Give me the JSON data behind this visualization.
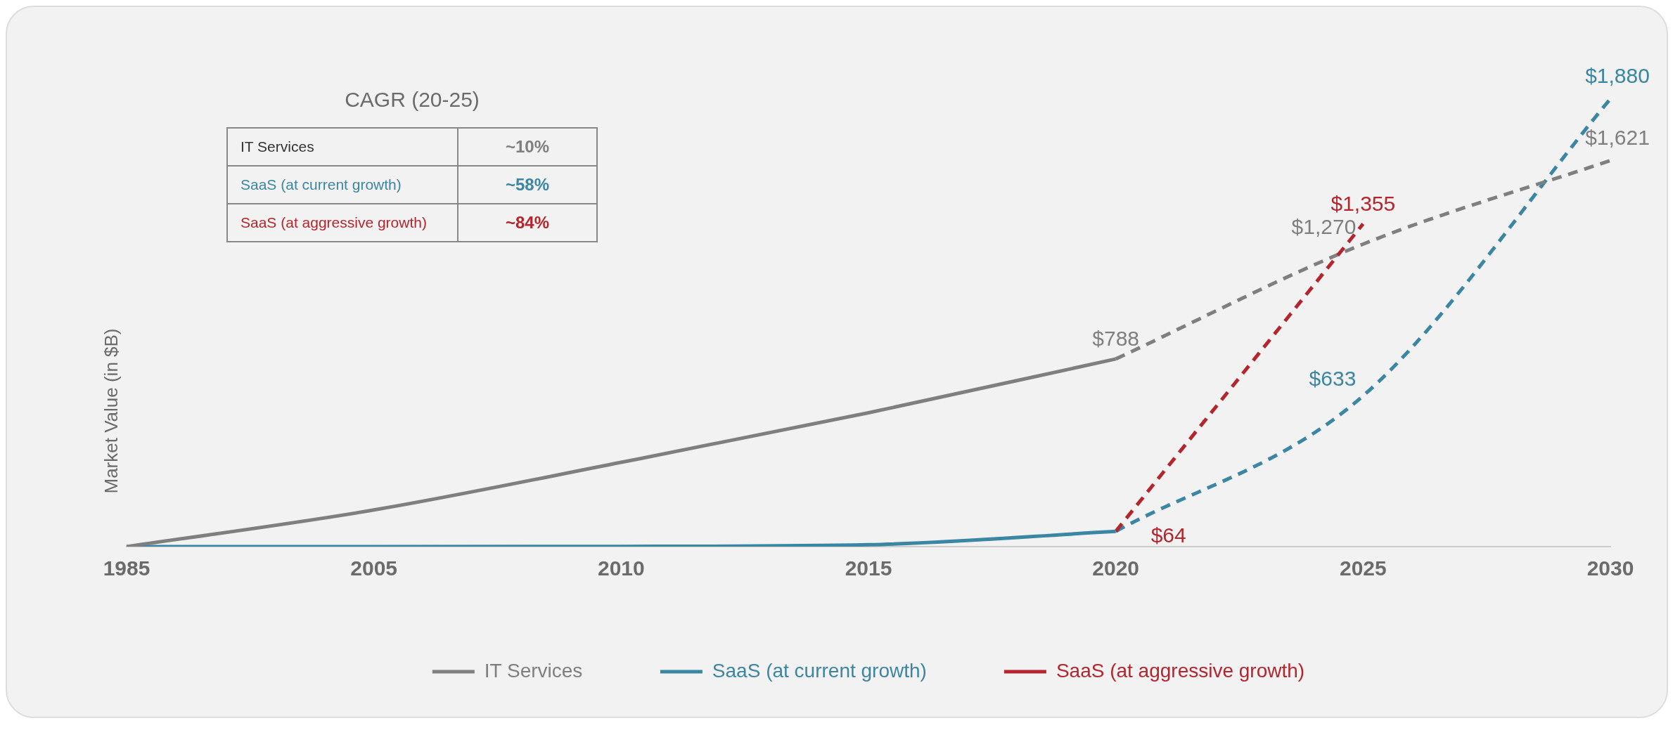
{
  "chart_data": {
    "type": "line",
    "categories": [
      "1985",
      "2005",
      "2010",
      "2015",
      "2020",
      "2025",
      "2030"
    ],
    "ylabel": "Market Value (in $B)",
    "annotations": [
      "CAGR (20-25)",
      "IT Services",
      "~10%",
      "SaaS (at current growth)",
      "~58%",
      "SaaS (at aggressive growth)",
      "~84%"
    ],
    "legend": "bottom",
    "grid": false,
    "marker": "none",
    "series": [
      {
        "name": "IT Services",
        "color": "#7f7f7f",
        "line_style": "solid",
        "values": [
          0,
          154,
          354,
          562,
          788,
          null,
          null
        ],
        "value_labels": [
          null,
          null,
          null,
          null,
          "$788",
          null,
          null
        ]
      },
      {
        "name": "SaaS (at current growth)",
        "color": "#3a86a3",
        "line_style": "solid",
        "values": [
          0,
          0,
          1,
          8,
          64,
          null,
          null
        ],
        "value_labels": [
          null,
          null,
          null,
          null,
          null,
          null,
          null
        ]
      },
      {
        "name": "SaaS (at aggressive growth)",
        "color": "#b3262d",
        "line_style": "dashed",
        "values": [
          null,
          null,
          null,
          null,
          64,
          1355,
          null
        ],
        "value_labels": [
          null,
          null,
          null,
          null,
          "$64",
          "$1,355",
          null
        ]
      },
      {
        "color": "#7f7f7f",
        "line_style": "dashed",
        "values": [
          null,
          null,
          null,
          null,
          788,
          1270,
          1621
        ],
        "value_labels": [
          null,
          null,
          null,
          null,
          null,
          "$1,270",
          "$1,621"
        ]
      },
      {
        "color": "#3a86a3",
        "line_style": "dashed",
        "values": [
          null,
          null,
          null,
          null,
          64,
          633,
          1880
        ],
        "value_labels": [
          null,
          null,
          null,
          null,
          null,
          "$633",
          "$1,880"
        ]
      }
    ]
  }
}
